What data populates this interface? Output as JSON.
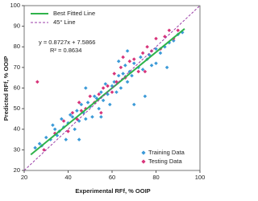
{
  "chart_data": {
    "type": "scatter",
    "x_label": "Experimental RFf, % OOIP",
    "y_label": "Predicted RFf, % OOIP",
    "xlim": [
      20,
      100
    ],
    "xticks": [
      20,
      40,
      60,
      80,
      100
    ],
    "ylim": [
      20,
      100
    ],
    "yticks": [
      20,
      30,
      40,
      50,
      60,
      70,
      80,
      90,
      100
    ],
    "legend_loc": "lower right",
    "lines_legend_loc": "upper left",
    "series": [
      {
        "name": "Training Data",
        "color": "#3b9ad8",
        "x": [
          25,
          27,
          28,
          30,
          32,
          33,
          34,
          35,
          36,
          37,
          38,
          39,
          40,
          41,
          42,
          43,
          44,
          45,
          46,
          47,
          48,
          49,
          50,
          51,
          52,
          53,
          54,
          55,
          56,
          57,
          58,
          59,
          60,
          61,
          62,
          63,
          64,
          65,
          66,
          67,
          68,
          69,
          70,
          72,
          73,
          74,
          75,
          76,
          77,
          78,
          80,
          82,
          84,
          86,
          88,
          90,
          92,
          63,
          48,
          70,
          55,
          45,
          80,
          85,
          67
        ],
        "y": [
          31,
          33,
          32,
          36,
          35,
          42,
          40,
          37,
          39,
          45,
          41,
          35,
          43,
          47,
          46,
          40,
          49,
          44,
          52,
          48,
          45,
          53,
          51,
          46,
          56,
          55,
          50,
          58,
          54,
          62,
          57,
          52,
          61,
          63,
          58,
          66,
          60,
          67,
          71,
          63,
          68,
          66,
          72,
          70,
          75,
          69,
          56,
          74,
          76,
          71,
          79,
          77,
          80,
          82,
          83,
          86,
          87,
          73,
          60,
          52,
          46,
          35,
          72,
          70,
          78
        ]
      },
      {
        "name": "Testing Data",
        "color": "#d8347a",
        "x": [
          26,
          29,
          34,
          38,
          40,
          42,
          44,
          46,
          48,
          50,
          52,
          54,
          56,
          58,
          60,
          61,
          62,
          64,
          66,
          68,
          70,
          72,
          74,
          76,
          78,
          80,
          82,
          84,
          86,
          88,
          90,
          55,
          65,
          45,
          75
        ],
        "y": [
          63,
          30,
          38,
          44,
          39,
          48,
          45,
          49,
          50,
          56,
          53,
          57,
          60,
          61,
          58,
          67,
          63,
          70,
          65,
          73,
          74,
          68,
          77,
          80,
          78,
          84,
          79,
          85,
          88,
          84,
          88,
          48,
          75,
          53,
          68
        ]
      }
    ],
    "lines": [
      {
        "name": "Best Fitted Line",
        "color": "#2fb34b",
        "dashed": false,
        "x": [
          23,
          93
        ],
        "y": [
          27.66,
          88.75
        ]
      },
      {
        "name": "45° Line",
        "color": "#9b3fa8",
        "dashed": true,
        "x": [
          20,
          100
        ],
        "y": [
          20,
          100
        ]
      }
    ],
    "equation": "y = 0.8727x + 7.5866",
    "r2": "R² = 0.8634"
  }
}
